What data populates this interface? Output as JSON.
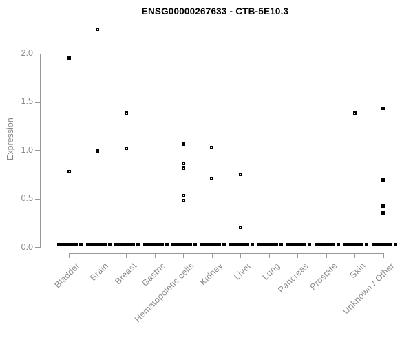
{
  "title": "ENSG00000267633 - CTB-5E10.3",
  "chart_data": {
    "type": "scatter",
    "title": "ENSG00000267633 - CTB-5E10.3",
    "xlabel": "",
    "ylabel": "Expression",
    "ylim": [
      0.0,
      2.3
    ],
    "yticks": [
      0.0,
      0.5,
      1.0,
      1.5,
      2.0
    ],
    "ytick_labels": [
      "0.0",
      "0.5",
      "1.0",
      "1.5",
      "2.0"
    ],
    "grid": false,
    "legend": "none",
    "marker": "open-square",
    "categories": [
      "Bladder",
      "Brain",
      "Breast",
      "Gastric",
      "Hematopoietic cells",
      "Kidney",
      "Liver",
      "Lung",
      "Pancreas",
      "Prostate",
      "Skin",
      "Unknown / Other"
    ],
    "series": [
      {
        "name": "Bladder",
        "values": [
          1.95,
          0.78
        ]
      },
      {
        "name": "Brain",
        "values": [
          2.25,
          0.99
        ]
      },
      {
        "name": "Breast",
        "values": [
          1.38,
          1.02
        ]
      },
      {
        "name": "Gastric",
        "values": []
      },
      {
        "name": "Hematopoietic cells",
        "values": [
          1.06,
          0.86,
          0.81,
          0.53,
          0.48
        ]
      },
      {
        "name": "Kidney",
        "values": [
          1.03,
          0.71
        ]
      },
      {
        "name": "Liver",
        "values": [
          0.75,
          0.2
        ]
      },
      {
        "name": "Lung",
        "values": []
      },
      {
        "name": "Pancreas",
        "values": []
      },
      {
        "name": "Prostate",
        "values": []
      },
      {
        "name": "Skin",
        "values": [
          1.38
        ]
      },
      {
        "name": "Unknown / Other",
        "values": [
          1.43,
          0.69,
          0.42,
          0.35
        ]
      }
    ],
    "zero_cluster_every_category": true,
    "zero_cluster_note": "Each category shows a dense horizontal bar of overlapping points at expression 0",
    "colors": {
      "point": "#000000",
      "axis": "#999999",
      "tick_text": "#8a8a8a",
      "title_text": "#000000",
      "background": "#ffffff"
    }
  }
}
